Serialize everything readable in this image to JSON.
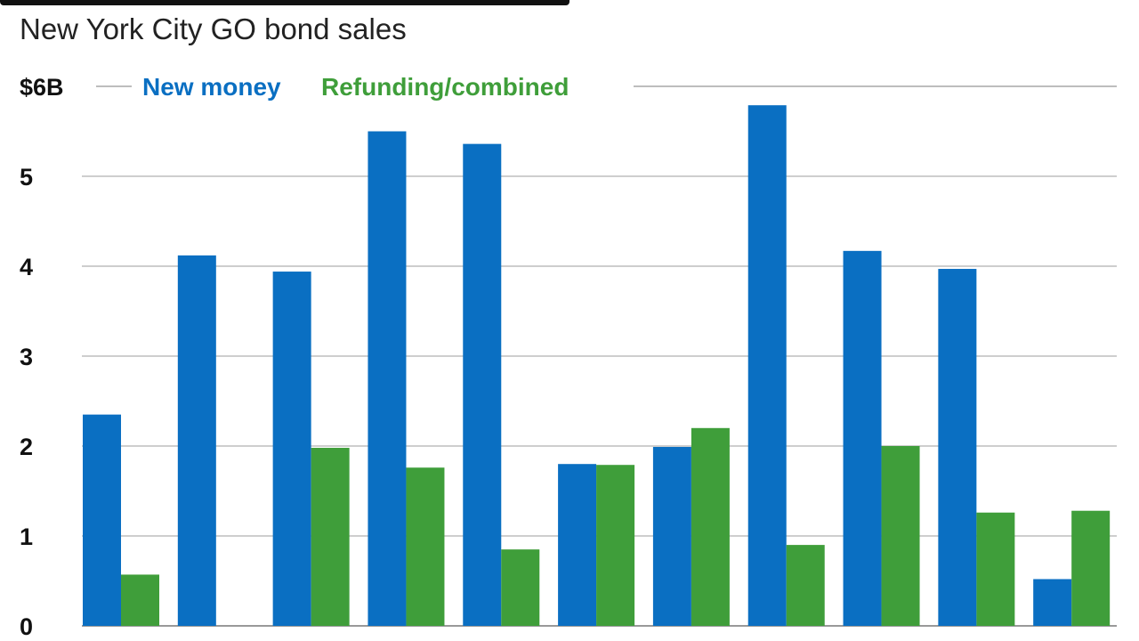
{
  "chart_data": {
    "type": "bar",
    "subtitle": "New York City GO bond sales",
    "unit_label": "$6B",
    "ylim": [
      0,
      6
    ],
    "yticks": [
      0,
      1,
      2,
      3,
      4,
      5,
      6
    ],
    "ytick_labels": [
      "0",
      "1",
      "2",
      "3",
      "4",
      "5",
      "$6B"
    ],
    "grid": true,
    "legend_position": "top",
    "categories": [
      "",
      "",
      "",
      "",
      "",
      "",
      "",
      "",
      "",
      "",
      ""
    ],
    "series": [
      {
        "name": "New money",
        "color": "#0a6fc2",
        "values": [
          2.35,
          4.12,
          3.94,
          5.5,
          5.36,
          1.8,
          1.99,
          5.79,
          4.17,
          3.97,
          0.52
        ]
      },
      {
        "name": "Refunding/combined",
        "color": "#3f9e3a",
        "values": [
          0.57,
          0,
          1.98,
          1.76,
          0.85,
          1.79,
          2.2,
          0.9,
          2.0,
          1.26,
          1.28
        ]
      }
    ]
  }
}
